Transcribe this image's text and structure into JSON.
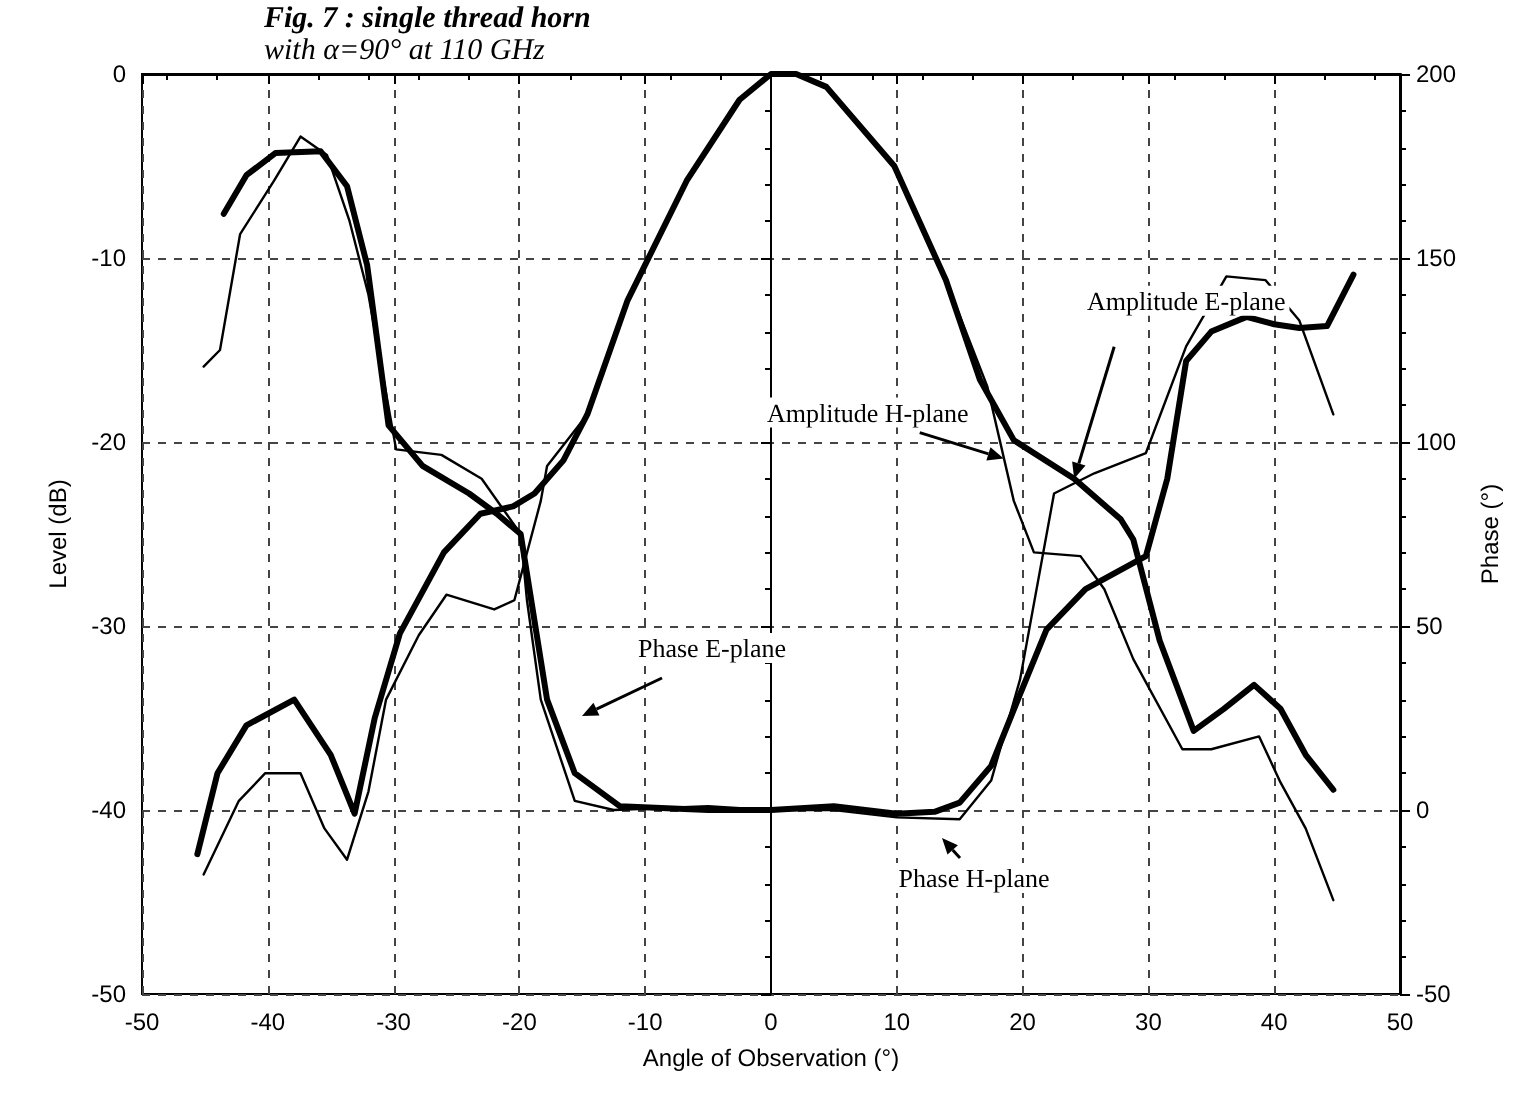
{
  "chart_data": {
    "type": "line",
    "title": "Fig. 7 : single thread horn",
    "subtitle": "with α=90° at 110 GHz",
    "xlabel": "Angle of Observation (°)",
    "ylabel": "Level (dB)",
    "y2label": "Phase (°)",
    "xlim": [
      -50,
      50
    ],
    "xticks": [
      -50,
      -40,
      -30,
      -20,
      -10,
      0,
      10,
      20,
      30,
      40,
      50
    ],
    "ylim": [
      -50,
      0
    ],
    "yticks": [
      -50,
      -40,
      -30,
      -20,
      -10,
      0
    ],
    "y2lim": [
      -50,
      200
    ],
    "y2ticks": [
      -50,
      0,
      50,
      100,
      150,
      200
    ],
    "grid": true,
    "marker": "none",
    "line_style": "solid",
    "series": [
      {
        "color": "#000000",
        "x": [
          -45.6,
          -44,
          -41.7,
          -37.9,
          -35,
          -33.1,
          -31.5,
          -29.5,
          -26,
          -23.1,
          -20.5,
          -18.8,
          -16.5,
          -14.6,
          -11.4,
          -6.7,
          -2.5,
          0,
          2,
          4.4,
          9.8,
          13.9,
          16.6,
          19.3,
          24.1,
          27.8,
          28.8,
          30.9,
          33.6,
          36,
          38.4,
          40.5,
          42.5,
          44.7
        ],
        "values": [
          -42.4,
          -38,
          -35.4,
          -34,
          -37,
          -40.2,
          -35,
          -30.4,
          -26,
          -23.9,
          -23.5,
          -22.8,
          -21,
          -18.5,
          -12.3,
          -5.8,
          -1.4,
          0,
          0,
          -0.7,
          -5,
          -11.2,
          -16.6,
          -19.9,
          -22,
          -24.2,
          -25.3,
          -30.8,
          -35.7,
          -34.5,
          -33.2,
          -34.5,
          -37,
          -38.9
        ]
      },
      {
        "color": "#000000",
        "x": [
          -45.1,
          -42.3,
          -40.2,
          -37.4,
          -35.5,
          -33.7,
          -32,
          -30.6,
          -28,
          -25.8,
          -22,
          -20.4,
          -18.3,
          -17.8,
          -14.6,
          -11.4,
          -6.7,
          -2.5,
          0,
          2,
          4.4,
          9.8,
          13.9,
          17.2,
          19.3,
          20.9,
          24.6,
          26.5,
          28.8,
          32.7,
          35,
          38.8,
          40.5,
          42.5,
          44.7
        ],
        "values": [
          -43.5,
          -39.5,
          -38,
          -38,
          -41,
          -42.7,
          -39,
          -34,
          -30.5,
          -28.3,
          -29.1,
          -28.6,
          -23.2,
          -21.3,
          -18.5,
          -12.3,
          -5.8,
          -1.4,
          0,
          0,
          -0.7,
          -5,
          -11.2,
          -17,
          -23.2,
          -26,
          -26.2,
          -28,
          -31.8,
          -36.7,
          -36.7,
          -36,
          -38.5,
          -41,
          -44.9
        ]
      },
      {
        "color": "#000000",
        "axis": "y2",
        "x": [
          -43.5,
          -41.7,
          -39.4,
          -35.8,
          -33.7,
          -32.1,
          -30.4,
          -27.7,
          -24,
          -21.8,
          -19.9,
          -17.8,
          -15.6,
          -12,
          -5,
          0,
          5,
          10,
          13,
          15,
          17.5,
          19.8,
          21.9,
          25,
          29.8,
          31.5,
          33,
          35,
          37.8,
          40,
          42,
          44.2,
          46.3
        ],
        "values": [
          162,
          172.5,
          178.5,
          179,
          169.5,
          148,
          104.5,
          93.5,
          86,
          80.5,
          75,
          30,
          10,
          1,
          0,
          0,
          1,
          -1,
          -0.5,
          2,
          12,
          31.5,
          49,
          60,
          69,
          90,
          122,
          130,
          134,
          132,
          131,
          131.5,
          145.5
        ]
      },
      {
        "color": "#000000",
        "axis": "y2",
        "x": [
          -45.1,
          -43.8,
          -42.2,
          -39.5,
          -37.4,
          -35.3,
          -33.5,
          -32,
          -29.8,
          -26.2,
          -23,
          -19.9,
          -19.4,
          -18.3,
          -15.6,
          -12.5,
          -5,
          0,
          5,
          10,
          15,
          17.5,
          19.8,
          22.5,
          25.7,
          29.8,
          33,
          36.2,
          39.3,
          42,
          44.7
        ],
        "values": [
          120.5,
          125,
          156.5,
          171,
          183,
          178,
          160,
          140,
          98,
          96.5,
          90,
          75,
          57,
          30,
          2.5,
          0,
          1,
          0,
          0,
          -2,
          -2.5,
          8,
          35.5,
          86,
          91.5,
          97,
          126,
          145,
          144,
          133,
          107.5
        ]
      }
    ],
    "annotations": [
      {
        "text": "Amplitude E-plane",
        "x": 24.1,
        "y": -22
      },
      {
        "text": "Amplitude H-plane",
        "x": 18.5,
        "y": -20.9
      },
      "Phase E-plane",
      "Phase H-plane"
    ]
  }
}
